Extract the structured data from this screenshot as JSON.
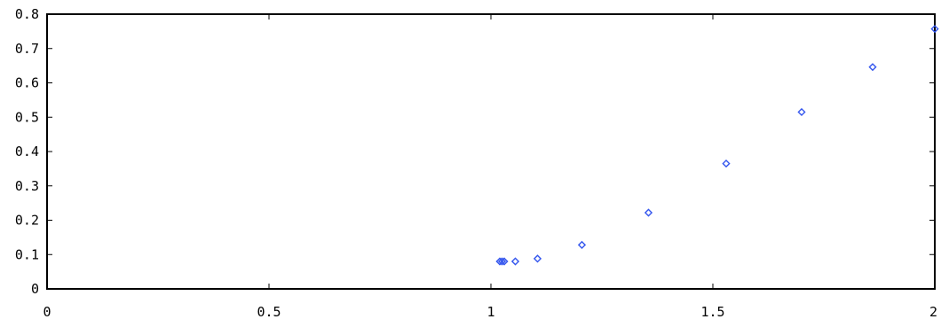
{
  "chart_data": {
    "type": "scatter",
    "title": "",
    "xlabel": "",
    "ylabel": "",
    "xlim": [
      0,
      2
    ],
    "ylim": [
      0,
      0.8
    ],
    "x_ticks": [
      0,
      0.5,
      1,
      1.5,
      2
    ],
    "x_tick_labels": [
      "0",
      "0.5",
      "1",
      "1.5",
      "2"
    ],
    "y_ticks": [
      0,
      0.1,
      0.2,
      0.3,
      0.4,
      0.5,
      0.6,
      0.7,
      0.8
    ],
    "y_tick_labels": [
      "0",
      "0.1",
      "0.2",
      "0.3",
      "0.4",
      "0.5",
      "0.6",
      "0.7",
      "0.8"
    ],
    "grid": false,
    "legend": "none",
    "series": [
      {
        "color": "#3355ee",
        "marker": "diamond",
        "x": [
          1.02,
          1.025,
          1.03,
          1.055,
          1.105,
          1.205,
          1.355,
          1.53,
          1.7,
          1.86,
          2.0
        ],
        "y": [
          0.08,
          0.08,
          0.08,
          0.08,
          0.088,
          0.128,
          0.222,
          0.365,
          0.515,
          0.646,
          0.757
        ]
      }
    ]
  }
}
